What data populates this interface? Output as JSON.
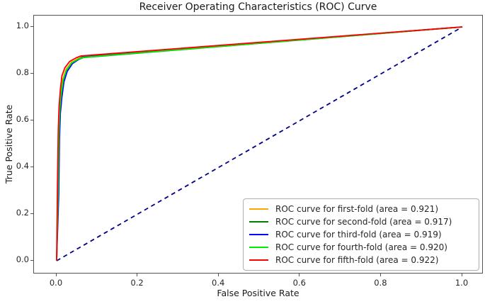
{
  "chart_data": {
    "type": "line",
    "title": "Receiver Operating Characteristics (ROC) Curve",
    "xlabel": "False Positive Rate",
    "ylabel": "True Positive Rate",
    "xlim": [
      -0.05,
      1.05
    ],
    "ylim": [
      -0.05,
      1.05
    ],
    "x_ticks": [
      "0.0",
      "0.2",
      "0.4",
      "0.6",
      "0.8",
      "1.0"
    ],
    "y_ticks": [
      "0.0",
      "0.2",
      "0.4",
      "0.6",
      "0.8",
      "1.0"
    ],
    "grid": false,
    "legend_position": "lower right",
    "series": [
      {
        "name": "ROC curve for first-fold (area = 0.921)",
        "fold": "first-fold",
        "auc": 0.921,
        "color": "#ffa500",
        "points": [
          [
            0,
            0
          ],
          [
            0.003,
            0.3
          ],
          [
            0.005,
            0.54
          ],
          [
            0.007,
            0.645
          ],
          [
            0.01,
            0.715
          ],
          [
            0.015,
            0.775
          ],
          [
            0.023,
            0.818
          ],
          [
            0.036,
            0.848
          ],
          [
            0.052,
            0.864
          ],
          [
            0.064,
            0.872
          ],
          [
            1,
            1
          ]
        ]
      },
      {
        "name": "ROC curve for second-fold (area = 0.917)",
        "fold": "second-fold",
        "auc": 0.917,
        "color": "#008000",
        "points": [
          [
            0,
            0
          ],
          [
            0.004,
            0.29
          ],
          [
            0.006,
            0.53
          ],
          [
            0.008,
            0.635
          ],
          [
            0.012,
            0.705
          ],
          [
            0.017,
            0.768
          ],
          [
            0.025,
            0.812
          ],
          [
            0.038,
            0.844
          ],
          [
            0.054,
            0.861
          ],
          [
            0.066,
            0.869
          ],
          [
            1,
            1
          ]
        ]
      },
      {
        "name": "ROC curve for third-fold (area = 0.919)",
        "fold": "third-fold",
        "auc": 0.919,
        "color": "#0000ff",
        "points": [
          [
            0,
            0
          ],
          [
            0.005,
            0.28
          ],
          [
            0.007,
            0.52
          ],
          [
            0.009,
            0.63
          ],
          [
            0.013,
            0.7
          ],
          [
            0.018,
            0.765
          ],
          [
            0.026,
            0.81
          ],
          [
            0.039,
            0.843
          ],
          [
            0.055,
            0.862
          ],
          [
            0.065,
            0.874
          ],
          [
            1,
            1
          ]
        ]
      },
      {
        "name": "ROC curve for fourth-fold (area = 0.920)",
        "fold": "fourth-fold",
        "auc": 0.92,
        "color": "#00ee00",
        "points": [
          [
            0,
            0
          ],
          [
            0.0035,
            0.295
          ],
          [
            0.0055,
            0.535
          ],
          [
            0.0075,
            0.64
          ],
          [
            0.011,
            0.71
          ],
          [
            0.016,
            0.772
          ],
          [
            0.024,
            0.815
          ],
          [
            0.037,
            0.846
          ],
          [
            0.053,
            0.862
          ],
          [
            0.065,
            0.87
          ],
          [
            1,
            1
          ]
        ]
      },
      {
        "name": "ROC curve for fifth-fold (area = 0.922)",
        "fold": "fifth-fold",
        "auc": 0.922,
        "color": "#ff0000",
        "points": [
          [
            0,
            0
          ],
          [
            0.002,
            0.32
          ],
          [
            0.004,
            0.56
          ],
          [
            0.006,
            0.66
          ],
          [
            0.009,
            0.73
          ],
          [
            0.013,
            0.79
          ],
          [
            0.02,
            0.825
          ],
          [
            0.032,
            0.852
          ],
          [
            0.048,
            0.868
          ],
          [
            0.06,
            0.876
          ],
          [
            1,
            1
          ]
        ]
      }
    ],
    "reference_line": {
      "name": "chance-diagonal",
      "color": "#00008b",
      "style": "dashed",
      "points": [
        [
          0,
          0
        ],
        [
          1,
          1
        ]
      ]
    }
  }
}
